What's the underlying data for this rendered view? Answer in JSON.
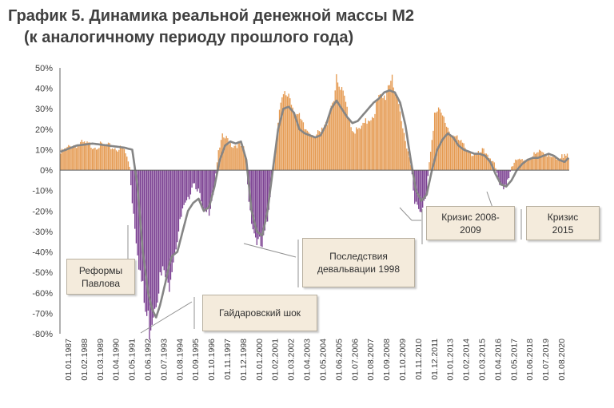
{
  "title_line1": "График 5. Динамика реальной денежной массы М2",
  "title_line2": "(к аналогичному периоду прошлого года)",
  "annotations": {
    "pavlov": "Реформы Павлова",
    "gaidar": "Гайдаровский шок",
    "devaluation": "Последствия девальвации 1998",
    "crisis_2008": "Кризис 2008-2009",
    "crisis_2015": "Кризис 2015"
  },
  "colors": {
    "positive": "#e59a51",
    "negative": "#7a3f91",
    "line": "#858585",
    "axis": "#606060"
  },
  "chart_data": {
    "type": "bar",
    "ylim": [
      -80,
      50
    ],
    "yticks": [
      50,
      40,
      30,
      20,
      10,
      0,
      -10,
      -20,
      -30,
      -40,
      -50,
      -60,
      -70,
      -80
    ],
    "ytick_labels": [
      "50%",
      "40%",
      "30%",
      "20%",
      "10%",
      "0%",
      "-10%",
      "-20%",
      "-30%",
      "-40%",
      "-50%",
      "-60%",
      "-70%",
      "-80%"
    ],
    "xtick_labels": [
      "01.01.1987",
      "01.02.1988",
      "01.03.1989",
      "01.04.1990",
      "01.05.1991",
      "01.06.1992",
      "01.07.1993",
      "01.08.1994",
      "01.09.1995",
      "01.10.1996",
      "01.11.1997",
      "01.12.1998",
      "01.01.2000",
      "01.02.2001",
      "01.03.2002",
      "01.04.2003",
      "01.05.2004",
      "01.06.2005",
      "01.07.2006",
      "01.08.2007",
      "01.09.2008",
      "01.10.2009",
      "01.11.2010",
      "01.12.2011",
      "01.01.2013",
      "01.02.2014",
      "01.03.2015",
      "01.04.2016",
      "01.05.2017",
      "01.06.2018",
      "01.07.2019",
      "01.08.2020"
    ],
    "series": [
      {
        "type": "bar",
        "anchors": [
          [
            0,
            8
          ],
          [
            8,
            12
          ],
          [
            16,
            13
          ],
          [
            24,
            12
          ],
          [
            32,
            12
          ],
          [
            40,
            11
          ],
          [
            48,
            10
          ],
          [
            52,
            2
          ],
          [
            54,
            -15
          ],
          [
            56,
            -27
          ],
          [
            60,
            -50
          ],
          [
            64,
            -70
          ],
          [
            67,
            -76
          ],
          [
            70,
            -67
          ],
          [
            74,
            -55
          ],
          [
            78,
            -50
          ],
          [
            81,
            -58
          ],
          [
            84,
            -45
          ],
          [
            88,
            -33
          ],
          [
            92,
            -20
          ],
          [
            96,
            -15
          ],
          [
            100,
            -5
          ],
          [
            104,
            -10
          ],
          [
            108,
            -22
          ],
          [
            112,
            -20
          ],
          [
            116,
            -8
          ],
          [
            118,
            5
          ],
          [
            122,
            16
          ],
          [
            126,
            15
          ],
          [
            130,
            12
          ],
          [
            134,
            13
          ],
          [
            138,
            10
          ],
          [
            140,
            2
          ],
          [
            142,
            -15
          ],
          [
            145,
            -28
          ],
          [
            148,
            -35
          ],
          [
            152,
            -38
          ],
          [
            156,
            -25
          ],
          [
            159,
            -5
          ],
          [
            162,
            12
          ],
          [
            165,
            28
          ],
          [
            168,
            35
          ],
          [
            172,
            38
          ],
          [
            176,
            30
          ],
          [
            180,
            25
          ],
          [
            184,
            20
          ],
          [
            188,
            19
          ],
          [
            192,
            17
          ],
          [
            196,
            18
          ],
          [
            200,
            22
          ],
          [
            204,
            32
          ],
          [
            208,
            42
          ],
          [
            212,
            37
          ],
          [
            216,
            31
          ],
          [
            220,
            20
          ],
          [
            224,
            19
          ],
          [
            228,
            21
          ],
          [
            232,
            25
          ],
          [
            236,
            28
          ],
          [
            240,
            34
          ],
          [
            244,
            35
          ],
          [
            248,
            44
          ],
          [
            250,
            48
          ],
          [
            254,
            32
          ],
          [
            258,
            20
          ],
          [
            262,
            10
          ],
          [
            265,
            -1
          ],
          [
            267,
            -15
          ],
          [
            270,
            -20
          ],
          [
            272,
            -22
          ],
          [
            276,
            -10
          ],
          [
            278,
            5
          ],
          [
            282,
            27
          ],
          [
            286,
            28
          ],
          [
            290,
            24
          ],
          [
            294,
            18
          ],
          [
            298,
            16
          ],
          [
            302,
            13
          ],
          [
            306,
            11
          ],
          [
            310,
            8
          ],
          [
            314,
            7
          ],
          [
            318,
            9
          ],
          [
            322,
            8
          ],
          [
            326,
            5
          ],
          [
            329,
            -3
          ],
          [
            331,
            -8
          ],
          [
            333,
            -9
          ],
          [
            336,
            -6
          ],
          [
            338,
            -3
          ],
          [
            340,
            2
          ],
          [
            344,
            4
          ],
          [
            348,
            5
          ],
          [
            352,
            6
          ],
          [
            356,
            7
          ],
          [
            360,
            8
          ],
          [
            364,
            9
          ],
          [
            368,
            8
          ],
          [
            372,
            5
          ],
          [
            376,
            4
          ],
          [
            380,
            8
          ],
          [
            382,
            10
          ],
          [
            383,
            7
          ]
        ]
      },
      {
        "type": "line",
        "anchors": [
          [
            0,
            9
          ],
          [
            12,
            12
          ],
          [
            24,
            13
          ],
          [
            36,
            12
          ],
          [
            48,
            11
          ],
          [
            54,
            10
          ],
          [
            58,
            -8
          ],
          [
            62,
            -40
          ],
          [
            66,
            -60
          ],
          [
            69,
            -68
          ],
          [
            72,
            -72
          ],
          [
            75,
            -66
          ],
          [
            79,
            -55
          ],
          [
            82,
            -46
          ],
          [
            84,
            -42
          ],
          [
            88,
            -40
          ],
          [
            92,
            -30
          ],
          [
            96,
            -20
          ],
          [
            100,
            -16
          ],
          [
            104,
            -14
          ],
          [
            108,
            -20
          ],
          [
            112,
            -18
          ],
          [
            116,
            -8
          ],
          [
            120,
            5
          ],
          [
            124,
            12
          ],
          [
            128,
            14
          ],
          [
            132,
            13
          ],
          [
            136,
            14
          ],
          [
            140,
            5
          ],
          [
            144,
            -20
          ],
          [
            148,
            -30
          ],
          [
            152,
            -32
          ],
          [
            156,
            -20
          ],
          [
            160,
            0
          ],
          [
            164,
            20
          ],
          [
            168,
            30
          ],
          [
            172,
            31
          ],
          [
            176,
            28
          ],
          [
            180,
            20
          ],
          [
            184,
            18
          ],
          [
            188,
            17
          ],
          [
            192,
            16
          ],
          [
            196,
            17
          ],
          [
            200,
            22
          ],
          [
            204,
            30
          ],
          [
            208,
            34
          ],
          [
            212,
            30
          ],
          [
            216,
            26
          ],
          [
            220,
            23
          ],
          [
            224,
            24
          ],
          [
            228,
            27
          ],
          [
            232,
            30
          ],
          [
            236,
            33
          ],
          [
            240,
            35
          ],
          [
            244,
            38
          ],
          [
            248,
            39
          ],
          [
            252,
            38
          ],
          [
            256,
            33
          ],
          [
            260,
            22
          ],
          [
            264,
            5
          ],
          [
            268,
            -10
          ],
          [
            272,
            -15
          ],
          [
            276,
            -12
          ],
          [
            280,
            0
          ],
          [
            284,
            10
          ],
          [
            288,
            15
          ],
          [
            292,
            18
          ],
          [
            296,
            16
          ],
          [
            300,
            12
          ],
          [
            304,
            10
          ],
          [
            308,
            9
          ],
          [
            312,
            8
          ],
          [
            316,
            8
          ],
          [
            320,
            7
          ],
          [
            324,
            4
          ],
          [
            328,
            -2
          ],
          [
            332,
            -7
          ],
          [
            336,
            -8
          ],
          [
            340,
            -5
          ],
          [
            344,
            0
          ],
          [
            348,
            3
          ],
          [
            352,
            5
          ],
          [
            356,
            6
          ],
          [
            360,
            6
          ],
          [
            364,
            7
          ],
          [
            368,
            8
          ],
          [
            372,
            7
          ],
          [
            376,
            5
          ],
          [
            380,
            4
          ],
          [
            383,
            6
          ]
        ]
      }
    ]
  }
}
